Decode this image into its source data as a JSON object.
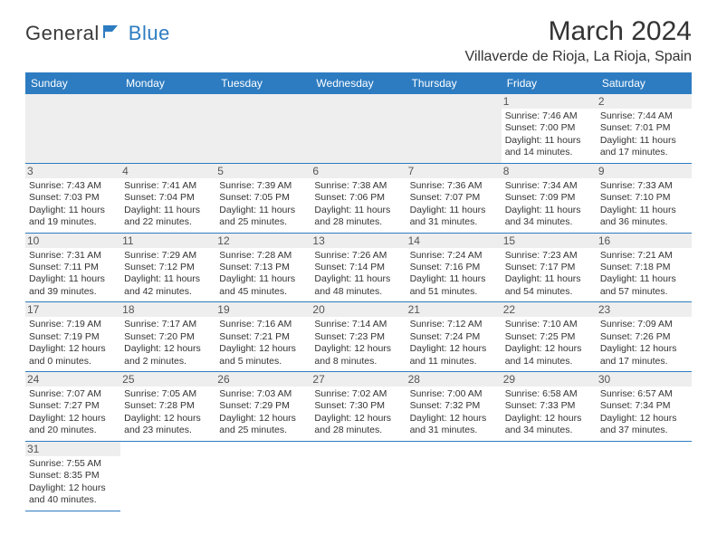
{
  "logo": {
    "text1": "General",
    "text2": "Blue"
  },
  "title": "March 2024",
  "location": "Villaverde de Rioja, La Rioja, Spain",
  "colors": {
    "header_bg": "#2d7cc1",
    "header_fg": "#ffffff",
    "daynum_bg": "#eeeeee",
    "border": "#2d7cc1",
    "text": "#333333"
  },
  "weekdays": [
    "Sunday",
    "Monday",
    "Tuesday",
    "Wednesday",
    "Thursday",
    "Friday",
    "Saturday"
  ],
  "weeks": [
    [
      null,
      null,
      null,
      null,
      null,
      {
        "n": "1",
        "sunrise": "Sunrise: 7:46 AM",
        "sunset": "Sunset: 7:00 PM",
        "daylight": "Daylight: 11 hours and 14 minutes."
      },
      {
        "n": "2",
        "sunrise": "Sunrise: 7:44 AM",
        "sunset": "Sunset: 7:01 PM",
        "daylight": "Daylight: 11 hours and 17 minutes."
      }
    ],
    [
      {
        "n": "3",
        "sunrise": "Sunrise: 7:43 AM",
        "sunset": "Sunset: 7:03 PM",
        "daylight": "Daylight: 11 hours and 19 minutes."
      },
      {
        "n": "4",
        "sunrise": "Sunrise: 7:41 AM",
        "sunset": "Sunset: 7:04 PM",
        "daylight": "Daylight: 11 hours and 22 minutes."
      },
      {
        "n": "5",
        "sunrise": "Sunrise: 7:39 AM",
        "sunset": "Sunset: 7:05 PM",
        "daylight": "Daylight: 11 hours and 25 minutes."
      },
      {
        "n": "6",
        "sunrise": "Sunrise: 7:38 AM",
        "sunset": "Sunset: 7:06 PM",
        "daylight": "Daylight: 11 hours and 28 minutes."
      },
      {
        "n": "7",
        "sunrise": "Sunrise: 7:36 AM",
        "sunset": "Sunset: 7:07 PM",
        "daylight": "Daylight: 11 hours and 31 minutes."
      },
      {
        "n": "8",
        "sunrise": "Sunrise: 7:34 AM",
        "sunset": "Sunset: 7:09 PM",
        "daylight": "Daylight: 11 hours and 34 minutes."
      },
      {
        "n": "9",
        "sunrise": "Sunrise: 7:33 AM",
        "sunset": "Sunset: 7:10 PM",
        "daylight": "Daylight: 11 hours and 36 minutes."
      }
    ],
    [
      {
        "n": "10",
        "sunrise": "Sunrise: 7:31 AM",
        "sunset": "Sunset: 7:11 PM",
        "daylight": "Daylight: 11 hours and 39 minutes."
      },
      {
        "n": "11",
        "sunrise": "Sunrise: 7:29 AM",
        "sunset": "Sunset: 7:12 PM",
        "daylight": "Daylight: 11 hours and 42 minutes."
      },
      {
        "n": "12",
        "sunrise": "Sunrise: 7:28 AM",
        "sunset": "Sunset: 7:13 PM",
        "daylight": "Daylight: 11 hours and 45 minutes."
      },
      {
        "n": "13",
        "sunrise": "Sunrise: 7:26 AM",
        "sunset": "Sunset: 7:14 PM",
        "daylight": "Daylight: 11 hours and 48 minutes."
      },
      {
        "n": "14",
        "sunrise": "Sunrise: 7:24 AM",
        "sunset": "Sunset: 7:16 PM",
        "daylight": "Daylight: 11 hours and 51 minutes."
      },
      {
        "n": "15",
        "sunrise": "Sunrise: 7:23 AM",
        "sunset": "Sunset: 7:17 PM",
        "daylight": "Daylight: 11 hours and 54 minutes."
      },
      {
        "n": "16",
        "sunrise": "Sunrise: 7:21 AM",
        "sunset": "Sunset: 7:18 PM",
        "daylight": "Daylight: 11 hours and 57 minutes."
      }
    ],
    [
      {
        "n": "17",
        "sunrise": "Sunrise: 7:19 AM",
        "sunset": "Sunset: 7:19 PM",
        "daylight": "Daylight: 12 hours and 0 minutes."
      },
      {
        "n": "18",
        "sunrise": "Sunrise: 7:17 AM",
        "sunset": "Sunset: 7:20 PM",
        "daylight": "Daylight: 12 hours and 2 minutes."
      },
      {
        "n": "19",
        "sunrise": "Sunrise: 7:16 AM",
        "sunset": "Sunset: 7:21 PM",
        "daylight": "Daylight: 12 hours and 5 minutes."
      },
      {
        "n": "20",
        "sunrise": "Sunrise: 7:14 AM",
        "sunset": "Sunset: 7:23 PM",
        "daylight": "Daylight: 12 hours and 8 minutes."
      },
      {
        "n": "21",
        "sunrise": "Sunrise: 7:12 AM",
        "sunset": "Sunset: 7:24 PM",
        "daylight": "Daylight: 12 hours and 11 minutes."
      },
      {
        "n": "22",
        "sunrise": "Sunrise: 7:10 AM",
        "sunset": "Sunset: 7:25 PM",
        "daylight": "Daylight: 12 hours and 14 minutes."
      },
      {
        "n": "23",
        "sunrise": "Sunrise: 7:09 AM",
        "sunset": "Sunset: 7:26 PM",
        "daylight": "Daylight: 12 hours and 17 minutes."
      }
    ],
    [
      {
        "n": "24",
        "sunrise": "Sunrise: 7:07 AM",
        "sunset": "Sunset: 7:27 PM",
        "daylight": "Daylight: 12 hours and 20 minutes."
      },
      {
        "n": "25",
        "sunrise": "Sunrise: 7:05 AM",
        "sunset": "Sunset: 7:28 PM",
        "daylight": "Daylight: 12 hours and 23 minutes."
      },
      {
        "n": "26",
        "sunrise": "Sunrise: 7:03 AM",
        "sunset": "Sunset: 7:29 PM",
        "daylight": "Daylight: 12 hours and 25 minutes."
      },
      {
        "n": "27",
        "sunrise": "Sunrise: 7:02 AM",
        "sunset": "Sunset: 7:30 PM",
        "daylight": "Daylight: 12 hours and 28 minutes."
      },
      {
        "n": "28",
        "sunrise": "Sunrise: 7:00 AM",
        "sunset": "Sunset: 7:32 PM",
        "daylight": "Daylight: 12 hours and 31 minutes."
      },
      {
        "n": "29",
        "sunrise": "Sunrise: 6:58 AM",
        "sunset": "Sunset: 7:33 PM",
        "daylight": "Daylight: 12 hours and 34 minutes."
      },
      {
        "n": "30",
        "sunrise": "Sunrise: 6:57 AM",
        "sunset": "Sunset: 7:34 PM",
        "daylight": "Daylight: 12 hours and 37 minutes."
      }
    ],
    [
      {
        "n": "31",
        "sunrise": "Sunrise: 7:55 AM",
        "sunset": "Sunset: 8:35 PM",
        "daylight": "Daylight: 12 hours and 40 minutes."
      },
      "blank",
      "blank",
      "blank",
      "blank",
      "blank",
      "blank"
    ]
  ]
}
